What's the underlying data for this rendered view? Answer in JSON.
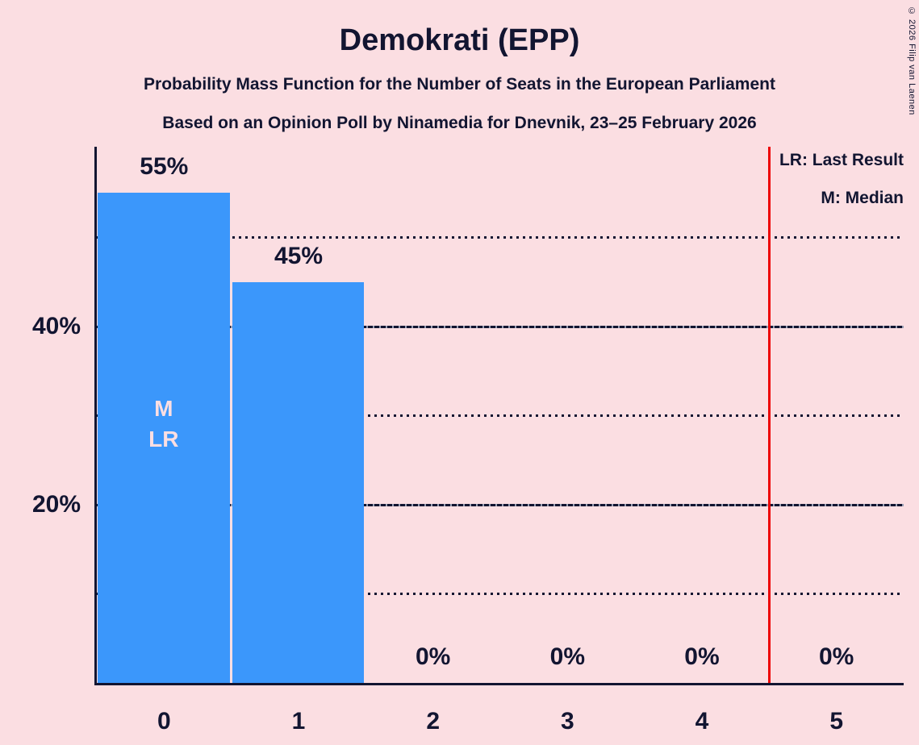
{
  "title": "Demokrati (EPP)",
  "subtitle1": "Probability Mass Function for the Number of Seats in the European Parliament",
  "subtitle2": "Based on an Opinion Poll by Ninamedia for Dnevnik, 23–25 February 2026",
  "copyright": "© 2026 Filip van Laenen",
  "legend": {
    "lr": "LR: Last Result",
    "m": "M: Median"
  },
  "colors": {
    "background": "#fbdee2",
    "bar": "#3b97fb",
    "ink": "#121531",
    "last_result_line": "#ee0404",
    "bar_annotation_text": "#fbdee2"
  },
  "chart_data": {
    "type": "bar",
    "title": "Demokrati (EPP)",
    "categories": [
      "0",
      "1",
      "2",
      "3",
      "4",
      "5"
    ],
    "values": [
      55,
      45,
      0,
      0,
      0,
      0
    ],
    "value_labels": [
      "55%",
      "45%",
      "0%",
      "0%",
      "0%",
      "0%"
    ],
    "annotations": [
      [
        "M",
        "LR"
      ],
      [],
      [],
      [],
      [],
      []
    ],
    "median_seats": 0,
    "last_result_seats": 0,
    "threshold_line_x": 4.5,
    "ylim": [
      0,
      60
    ],
    "yticks": [
      {
        "value": 10,
        "style": "dotted",
        "label": ""
      },
      {
        "value": 20,
        "style": "solid",
        "label": "20%"
      },
      {
        "value": 30,
        "style": "dotted",
        "label": ""
      },
      {
        "value": 40,
        "style": "solid",
        "label": "40%"
      },
      {
        "value": 50,
        "style": "dotted",
        "label": ""
      }
    ],
    "grid": "horizontal",
    "legend_position": "top-right"
  }
}
